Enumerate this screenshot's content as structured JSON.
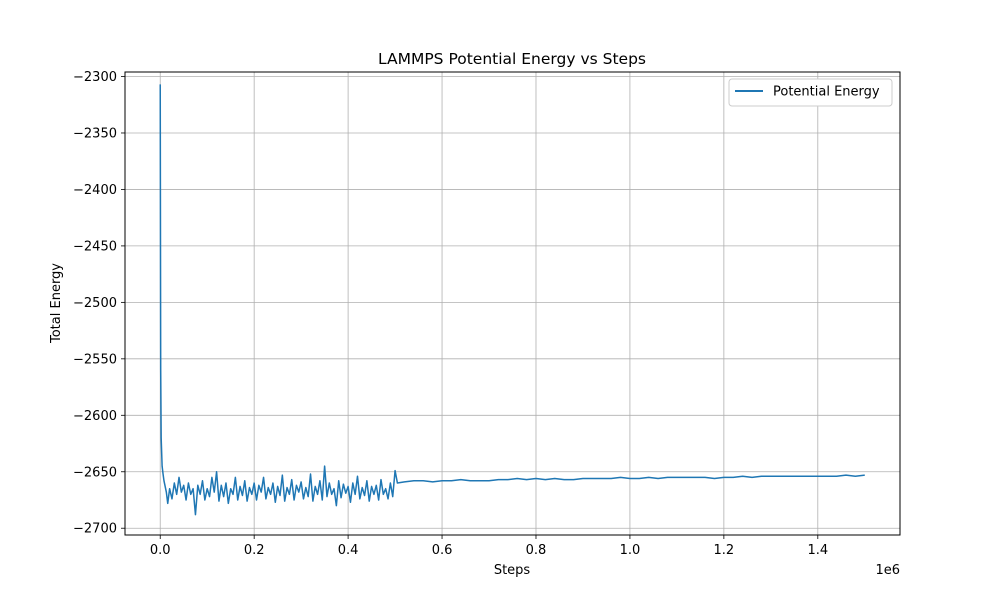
{
  "chart_data": {
    "type": "line",
    "title": "LAMMPS Potential Energy vs Steps",
    "xlabel": "Steps",
    "ylabel": "Total Energy",
    "x_offset_label": "1e6",
    "x_scale": 1000000,
    "xlim": [
      -75000,
      1575000
    ],
    "ylim": [
      -2706,
      -2296
    ],
    "xticks": [
      0,
      200000,
      400000,
      600000,
      800000,
      1000000,
      1200000,
      1400000
    ],
    "xtick_labels": [
      "0.0",
      "0.2",
      "0.4",
      "0.6",
      "0.8",
      "1.0",
      "1.2",
      "1.4"
    ],
    "yticks": [
      -2300,
      -2350,
      -2400,
      -2450,
      -2500,
      -2550,
      -2600,
      -2650,
      -2700
    ],
    "ytick_labels": [
      "−2300",
      "−2350",
      "−2400",
      "−2450",
      "−2500",
      "−2550",
      "−2600",
      "−2650",
      "−2700"
    ],
    "grid": true,
    "legend_position": "top-right",
    "series": [
      {
        "name": "Potential Energy",
        "color": "#1f77b4",
        "x": [
          0,
          1000,
          2000,
          4000,
          6000,
          8000,
          10000,
          13000,
          16000,
          20000,
          25000,
          30000,
          35000,
          40000,
          45000,
          50000,
          55000,
          60000,
          65000,
          70000,
          75000,
          80000,
          85000,
          90000,
          95000,
          100000,
          105000,
          110000,
          115000,
          120000,
          125000,
          130000,
          135000,
          140000,
          145000,
          150000,
          155000,
          160000,
          165000,
          170000,
          175000,
          180000,
          185000,
          190000,
          195000,
          200000,
          205000,
          210000,
          215000,
          220000,
          225000,
          230000,
          235000,
          240000,
          245000,
          250000,
          255000,
          260000,
          265000,
          270000,
          275000,
          280000,
          285000,
          290000,
          295000,
          300000,
          305000,
          310000,
          315000,
          320000,
          325000,
          330000,
          335000,
          340000,
          345000,
          350000,
          355000,
          360000,
          365000,
          370000,
          375000,
          380000,
          385000,
          390000,
          395000,
          400000,
          405000,
          410000,
          415000,
          420000,
          425000,
          430000,
          435000,
          440000,
          445000,
          450000,
          455000,
          460000,
          465000,
          470000,
          475000,
          480000,
          485000,
          490000,
          495000,
          500000,
          505000,
          520000,
          540000,
          560000,
          580000,
          600000,
          620000,
          640000,
          660000,
          680000,
          700000,
          720000,
          740000,
          760000,
          780000,
          800000,
          820000,
          840000,
          860000,
          880000,
          900000,
          920000,
          940000,
          960000,
          980000,
          1000000,
          1020000,
          1040000,
          1060000,
          1080000,
          1100000,
          1120000,
          1140000,
          1160000,
          1180000,
          1200000,
          1220000,
          1240000,
          1260000,
          1280000,
          1300000,
          1320000,
          1340000,
          1360000,
          1380000,
          1400000,
          1420000,
          1440000,
          1460000,
          1480000,
          1500000
        ],
        "y": [
          -2307,
          -2560,
          -2620,
          -2645,
          -2652,
          -2658,
          -2662,
          -2668,
          -2678,
          -2665,
          -2674,
          -2660,
          -2670,
          -2655,
          -2668,
          -2662,
          -2675,
          -2660,
          -2670,
          -2665,
          -2688,
          -2662,
          -2670,
          -2658,
          -2675,
          -2665,
          -2672,
          -2655,
          -2668,
          -2650,
          -2676,
          -2662,
          -2672,
          -2660,
          -2678,
          -2665,
          -2670,
          -2655,
          -2675,
          -2663,
          -2671,
          -2658,
          -2676,
          -2664,
          -2670,
          -2660,
          -2675,
          -2662,
          -2668,
          -2655,
          -2674,
          -2664,
          -2670,
          -2660,
          -2677,
          -2663,
          -2671,
          -2653,
          -2676,
          -2664,
          -2670,
          -2657,
          -2675,
          -2662,
          -2668,
          -2659,
          -2674,
          -2664,
          -2672,
          -2652,
          -2676,
          -2663,
          -2670,
          -2658,
          -2675,
          -2645,
          -2672,
          -2660,
          -2670,
          -2665,
          -2680,
          -2658,
          -2673,
          -2661,
          -2669,
          -2663,
          -2677,
          -2660,
          -2670,
          -2654,
          -2674,
          -2664,
          -2671,
          -2658,
          -2676,
          -2663,
          -2670,
          -2662,
          -2675,
          -2657,
          -2670,
          -2665,
          -2674,
          -2660,
          -2672,
          -2649,
          -2660,
          -2659,
          -2658,
          -2658,
          -2659,
          -2658,
          -2658,
          -2657,
          -2658,
          -2658,
          -2658,
          -2657,
          -2657,
          -2656,
          -2657,
          -2656,
          -2657,
          -2656,
          -2657,
          -2657,
          -2656,
          -2656,
          -2656,
          -2656,
          -2655,
          -2656,
          -2656,
          -2655,
          -2656,
          -2655,
          -2655,
          -2655,
          -2655,
          -2655,
          -2656,
          -2655,
          -2655,
          -2654,
          -2655,
          -2654,
          -2654,
          -2654,
          -2654,
          -2654,
          -2654,
          -2654,
          -2654,
          -2654,
          -2653,
          -2654,
          -2653
        ]
      }
    ]
  }
}
